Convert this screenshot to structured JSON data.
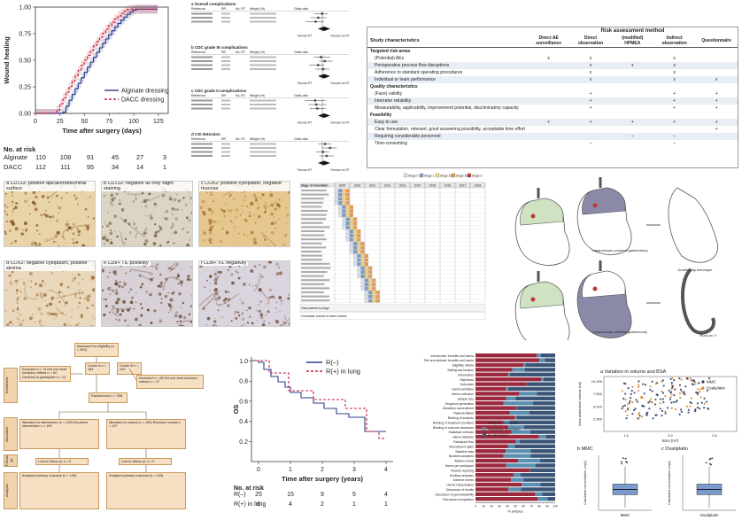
{
  "km_top": {
    "ylabel": "Wound healing",
    "xlabel": "Time after surgery (days)",
    "yticks": [
      "0.00",
      "0.25",
      "0.50",
      "0.75",
      "1.00"
    ],
    "xticks": [
      "0",
      "25",
      "50",
      "75",
      "100",
      "125"
    ],
    "legend": [
      {
        "name": "Alginate dressing",
        "color": "#2b3f8f",
        "dash": "solid"
      },
      {
        "name": "DACC dressing",
        "color": "#c4233a",
        "dash": "dashed"
      }
    ],
    "risk_title": "No. at risk",
    "risk_rows": [
      {
        "label": "Alginate",
        "values": [
          "110",
          "108",
          "91",
          "45",
          "27",
          "3"
        ]
      },
      {
        "label": "DACC",
        "values": [
          "112",
          "111",
          "95",
          "34",
          "14",
          "1"
        ]
      }
    ]
  },
  "forest": {
    "panels": [
      {
        "letter": "a",
        "title": "Overall complications"
      },
      {
        "letter": "b",
        "title": "CDC grade III complications"
      },
      {
        "letter": "c",
        "title": "CDC grade II complications"
      },
      {
        "letter": "d",
        "title": "CSI detection"
      }
    ],
    "col_headers": [
      "Reference",
      "RR",
      "No. RT",
      "Weight (%)",
      "Odds ratio"
    ],
    "favours": [
      "Favours RT",
      "Favours no RT"
    ]
  },
  "risk_table": {
    "header_group": "Risk assessment method",
    "study_col": "Study characteristics",
    "methods": [
      "Direct AE surveillance",
      "Direct observation",
      "(modified) HPMEA",
      "Indirect observation",
      "Questionnaire"
    ],
    "sections": [
      {
        "title": "Targeted risk areas",
        "rows": [
          {
            "label": "(Potential) AEs",
            "marks": [
              "x",
              "x",
              "",
              "x",
              ""
            ]
          },
          {
            "label": "Perioperative process flow disruptions",
            "marks": [
              "",
              "x",
              "x",
              "x",
              ""
            ]
          },
          {
            "label": "Adherence to standard operating procedures",
            "marks": [
              "",
              "x",
              "",
              "x",
              ""
            ]
          },
          {
            "label": "Individual or team performance",
            "marks": [
              "",
              "x",
              "",
              "x",
              "x"
            ]
          }
        ]
      },
      {
        "title": "Quality characteristics",
        "rows": [
          {
            "label": "(Face) validity",
            "marks": [
              "",
              "+",
              "",
              "+",
              "+"
            ]
          },
          {
            "label": "Interrater reliability",
            "marks": [
              "",
              "+",
              "",
              "+",
              "+"
            ]
          },
          {
            "label": "Measurability, applicability, improvement potential, discriminatory capacity",
            "marks": [
              "",
              "+",
              "",
              "+",
              "+"
            ]
          }
        ]
      },
      {
        "title": "Feasibility",
        "rows": [
          {
            "label": "Easy to use",
            "marks": [
              "+",
              "+",
              "+",
              "+",
              "+"
            ]
          },
          {
            "label": "Clear formulation, relevant, good answering possibility, acceptable time effort",
            "marks": [
              "",
              "",
              "",
              "",
              "+"
            ]
          },
          {
            "label": "Requiring considerable personnel",
            "marks": [
              "",
              "",
              "–",
              "–",
              ""
            ]
          },
          {
            "label": "Time-consuming",
            "marks": [
              "",
              "–",
              "",
              "–",
              ""
            ]
          }
        ]
      }
    ]
  },
  "ihc": {
    "tiles": [
      {
        "label": "a  CD133: positive apical/endoluminal surface",
        "bg": "#e9d3a8",
        "dot": "#7a4a1c"
      },
      {
        "label": "b  CD133: negative as only slight staining",
        "bg": "#dcd4c4",
        "dot": "#6b5a3a"
      },
      {
        "label": "c  COX2: positive cytoplasm, negative mucosa",
        "bg": "#e6c78e",
        "dot": "#a0682a"
      },
      {
        "label": "d  COX2: negative cytoplasm, positive stroma",
        "bg": "#ead8bc",
        "dot": "#9d6b34"
      },
      {
        "label": "e  CD8+ TIL positivity",
        "bg": "#d8d2d8",
        "dot": "#5a3218"
      },
      {
        "label": "f  CD8+ TIL negativity",
        "bg": "#dad4de",
        "dot": "#6a4028"
      }
    ]
  },
  "gantt": {
    "legend": [
      "Stage 0",
      "Stage 1",
      "Stage 2a",
      "Stage 2b",
      "Stage 3"
    ],
    "legend_colors": [
      "#d9e4f2",
      "#7d98c9",
      "#f3d27a",
      "#ec9a4b",
      "#c0392b"
    ],
    "years": [
      "2009",
      "2010",
      "2011",
      "2012",
      "2013",
      "2014",
      "2015",
      "2016",
      "2017",
      "2018"
    ],
    "row_header": "Stage of innovation",
    "footer_rows": [
      "Total patients by stage",
      "Cumulative number of active centres"
    ]
  },
  "surgery": {
    "captions": [
      "Laparoscopic proximal gastrectomy",
      "Double-flap technique",
      "Laparoscopic subtotal gastrectomy",
      "Roux-en-Y"
    ]
  },
  "flowchart": {
    "boxes": [
      "Assessed for eligibility (n = 500)",
      "Excluded n = 74  Did not meet inclusion criteria n = 64  Declined to participate n = 10",
      "Centre A  n = 184",
      "Centre B  n = 242",
      "Excluded n = 28  Did not meet inclusion criteria n = 27",
      "Randomized n = 398",
      "Allocated to intervention (n = 199)  Received intervention n = 194",
      "Allocated to control (n = 199)  Received control n = 197",
      "Lost to follow-up n = 0",
      "Lost to follow-up n = 0",
      "Analysed primary outcome (n = 199)",
      "Analysed primary outcome (n = 199)"
    ],
    "side_tabs": [
      "Enrolment",
      "Allocation",
      "Follow-up",
      "Analysis"
    ]
  },
  "km_bottom": {
    "ylabel": "OS",
    "xlabel": "Time after surgery (years)",
    "yticks": [
      "0.2",
      "0.4",
      "0.6",
      "0.8",
      "1.0"
    ],
    "xticks": [
      "0",
      "1",
      "2",
      "3",
      "4"
    ],
    "legend": [
      {
        "name": "R(–)",
        "color": "#2b3f8f",
        "dash": "solid"
      },
      {
        "name": "R(+) in lung",
        "color": "#c4233a",
        "dash": "dashed"
      }
    ],
    "risk_title": "No. at risk",
    "risk_rows": [
      {
        "label": "R(–)",
        "values": [
          "25",
          "15",
          "9",
          "5",
          "4"
        ]
      },
      {
        "label": "R(+) in lung",
        "values": [
          "6",
          "4",
          "2",
          "1",
          "1"
        ]
      }
    ]
  },
  "stacked_bars": {
    "xlabel": "% articles",
    "legend": [
      "Adequate description",
      "Inadequate description",
      "No description"
    ],
    "colors": [
      "#9b2a3f",
      "#5b8fb0",
      "#3c5577"
    ],
    "items": [
      "Introduction: benefits and harms",
      "Title and abstract: benefits and harms",
      "Eligibility criteria",
      "Setting and location",
      "Intervention",
      "Objectives",
      "Outcomes",
      "Harms definition",
      "Harms collection",
      "Sample size",
      "Sequence generation",
      "Allocation concealment",
      "Implementation",
      "Blinding of subjects",
      "Blinding of treatment providers",
      "Blinding of outcome assessors",
      "Statistical methods",
      "Harms statistics",
      "Participant flow",
      "Recruitment dates",
      "Baseline data",
      "Numbers analysed",
      "Attrition to trial",
      "Harms per participant",
      "Results reporting",
      "Ancillary analyses",
      "Adverse events",
      "Harms interpretation",
      "Discussion of results",
      "Discussion of generalizability",
      "Discussion comparison"
    ]
  },
  "scatter": {
    "title": "a  Variation in volume and BSA",
    "ylabel": "Intra-abdominal volume (ml)",
    "xlabel": "BSA (m²)",
    "legend": [
      "MMC",
      "Oxaliplatin"
    ],
    "yticks": [
      "2,500",
      "5,000",
      "7,500",
      "10,000"
    ],
    "xticks": [
      "1.5",
      "2.0",
      "2.5"
    ]
  },
  "boxplots": [
    {
      "title": "b  MMC",
      "xlabel": "MMC",
      "ylabel": "Calculated concentration (mg/l)"
    },
    {
      "title": "c  Oxaliplatin",
      "xlabel": "Oxaliplatin",
      "ylabel": "Calculated concentration (mg/l)"
    }
  ]
}
